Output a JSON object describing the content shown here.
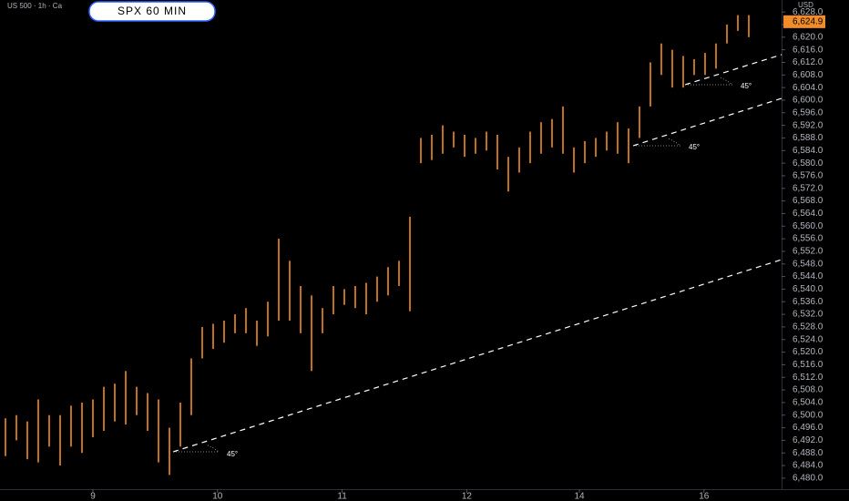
{
  "chart_data": {
    "type": "ohlc",
    "title": "SPX 60 MIN",
    "symbol": "US 500 · 1h · Ca",
    "currency": "USD",
    "color": "#f28c28",
    "last_price": {
      "value": 6624.9,
      "label": "6,624.9"
    },
    "annotations": [
      "45°",
      "45°",
      "45°"
    ],
    "x": [
      0,
      1,
      2,
      3,
      4,
      5,
      6,
      7,
      8,
      9,
      10,
      11,
      12,
      13,
      14,
      15,
      16,
      17,
      18,
      19,
      20,
      21,
      22,
      23,
      24,
      25,
      26,
      27,
      28,
      29,
      30,
      31,
      32,
      33,
      34,
      35,
      36,
      37,
      38,
      39,
      40,
      41,
      42,
      43,
      44,
      45,
      46,
      47,
      48,
      49,
      50,
      51,
      52,
      53,
      54,
      55,
      56,
      57,
      58,
      59,
      60,
      61,
      62,
      63,
      64,
      65,
      66,
      67,
      68
    ],
    "low": [
      6487,
      6492,
      6486,
      6485,
      6490,
      6484,
      6490,
      6488,
      6493,
      6495,
      6498,
      6497,
      6500,
      6495,
      6485,
      6481,
      6490,
      6500,
      6518,
      6521,
      6523,
      6526,
      6526,
      6522,
      6525,
      6530,
      6530,
      6526,
      6514,
      6526,
      6532,
      6535,
      6534,
      6532,
      6536,
      6538,
      6541,
      6533,
      6580,
      6581,
      6583,
      6585,
      6582,
      6583,
      6584,
      6578,
      6571,
      6577,
      6580,
      6583,
      6585,
      6583,
      6577,
      6580,
      6582,
      6584,
      6583,
      6580,
      6588,
      6598,
      6608,
      6604,
      6604,
      6608,
      6608,
      6610,
      6618,
      6622,
      6620
    ],
    "high": [
      6499,
      6500,
      6498,
      6505,
      6500,
      6500,
      6503,
      6504,
      6505,
      6509,
      6510,
      6514,
      6509,
      6507,
      6505,
      6496,
      6504,
      6518,
      6528,
      6529,
      6530,
      6532,
      6534,
      6530,
      6536,
      6556,
      6549,
      6541,
      6538,
      6534,
      6541,
      6540,
      6541,
      6542,
      6544,
      6547,
      6549,
      6563,
      6588,
      6589,
      6592,
      6590,
      6589,
      6588,
      6590,
      6589,
      6582,
      6585,
      6590,
      6593,
      6594,
      6598,
      6585,
      6587,
      6588,
      6590,
      6593,
      6591,
      6598,
      6612,
      6618,
      6616,
      6614,
      6613,
      6615,
      6618,
      6624,
      6627,
      6627
    ],
    "xlim": [
      -0.5,
      71
    ],
    "xticks": [
      {
        "value": 8,
        "label": "9"
      },
      {
        "value": 19.4,
        "label": "10"
      },
      {
        "value": 30.8,
        "label": "11"
      },
      {
        "value": 42.2,
        "label": "12"
      },
      {
        "value": 52.5,
        "label": "14"
      },
      {
        "value": 63.9,
        "label": "16"
      }
    ],
    "ylim": [
      6476.5,
      6631.8
    ],
    "yticks": [
      {
        "value": 6628,
        "label": "6,628.0"
      },
      {
        "value": 6624,
        "label": "6,624.0"
      },
      {
        "value": 6620,
        "label": "6,620.0"
      },
      {
        "value": 6616,
        "label": "6,616.0"
      },
      {
        "value": 6612,
        "label": "6,612.0"
      },
      {
        "value": 6608,
        "label": "6,608.0"
      },
      {
        "value": 6604,
        "label": "6,604.0"
      },
      {
        "value": 6600,
        "label": "6,600.0"
      },
      {
        "value": 6596,
        "label": "6,596.0"
      },
      {
        "value": 6592,
        "label": "6,592.0"
      },
      {
        "value": 6588,
        "label": "6,588.0"
      },
      {
        "value": 6584,
        "label": "6,584.0"
      },
      {
        "value": 6580,
        "label": "6,580.0"
      },
      {
        "value": 6576,
        "label": "6,576.0"
      },
      {
        "value": 6572,
        "label": "6,572.0"
      },
      {
        "value": 6568,
        "label": "6,568.0"
      },
      {
        "value": 6564,
        "label": "6,564.0"
      },
      {
        "value": 6560,
        "label": "6,560.0"
      },
      {
        "value": 6556,
        "label": "6,556.0"
      },
      {
        "value": 6552,
        "label": "6,552.0"
      },
      {
        "value": 6548,
        "label": "6,548.0"
      },
      {
        "value": 6544,
        "label": "6,544.0"
      },
      {
        "value": 6540,
        "label": "6,540.0"
      },
      {
        "value": 6536,
        "label": "6,536.0"
      },
      {
        "value": 6532,
        "label": "6,532.0"
      },
      {
        "value": 6528,
        "label": "6,528.0"
      },
      {
        "value": 6524,
        "label": "6,524.0"
      },
      {
        "value": 6520,
        "label": "6,520.0"
      },
      {
        "value": 6516,
        "label": "6,516.0"
      },
      {
        "value": 6512,
        "label": "6,512.0"
      },
      {
        "value": 6508,
        "label": "6,508.0"
      },
      {
        "value": 6504,
        "label": "6,504.0"
      },
      {
        "value": 6500,
        "label": "6,500.0"
      },
      {
        "value": 6496,
        "label": "6,496.0"
      },
      {
        "value": 6492,
        "label": "6,492.0"
      },
      {
        "value": 6488,
        "label": "6,488.0"
      },
      {
        "value": 6484,
        "label": "6,484.0"
      },
      {
        "value": 6480,
        "label": "6,480.0"
      }
    ]
  }
}
